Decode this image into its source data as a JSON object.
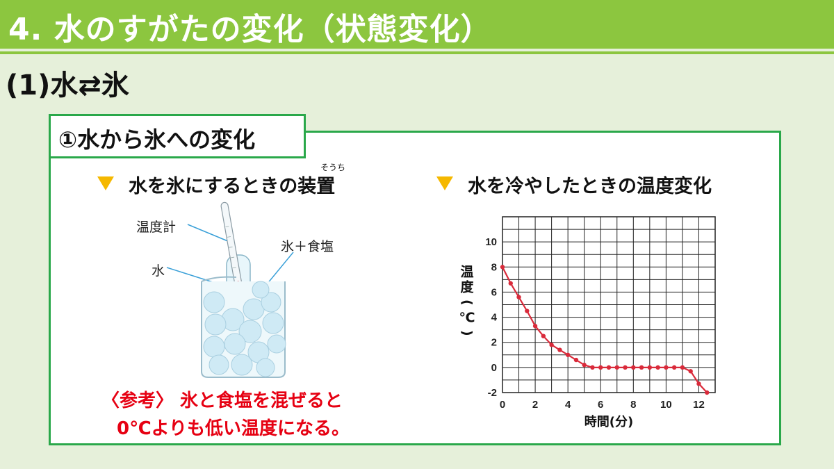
{
  "header": {
    "title": "4. 水のすがたの変化（状態変化）",
    "subtitle": "(1)水⇄氷"
  },
  "panel": {
    "tab_label": "①水から氷への変化",
    "left": {
      "heading": "水を氷にするときの装置",
      "ruby": "そうち",
      "labels": {
        "thermometer": "温度計",
        "water": "水",
        "ice_salt": "氷＋食塩"
      },
      "note_line1": "〈参考〉 氷と食塩を混ぜると",
      "note_line2": "0℃よりも低い温度になる。"
    },
    "right": {
      "heading": "水を冷やしたときの温度変化"
    }
  },
  "colors": {
    "title_bar": "#8cc63f",
    "panel_border": "#2aa84a",
    "marker": "#f5b800",
    "note": "#e60012",
    "series": "#d92a3a"
  },
  "chart_data": {
    "type": "line",
    "xlabel": "時間(分)",
    "ylabel": "温度(℃)",
    "xlim": [
      0,
      13
    ],
    "ylim": [
      -2,
      12
    ],
    "xticks": [
      "0",
      "2",
      "4",
      "6",
      "8",
      "10",
      "12"
    ],
    "yticks": [
      "-2",
      "0",
      "2",
      "4",
      "6",
      "8",
      "10"
    ],
    "grid": true,
    "series": [
      {
        "x": [
          0,
          0.5,
          1,
          1.5,
          2,
          2.5,
          3,
          3.5,
          4,
          4.5,
          5,
          5.5,
          6,
          6.5,
          7,
          7.5,
          8,
          8.5,
          9,
          9.5,
          10,
          10.5,
          11,
          11.5,
          12,
          12.5
        ],
        "y": [
          8,
          6.7,
          5.6,
          4.5,
          3.3,
          2.5,
          1.8,
          1.4,
          1.0,
          0.6,
          0.2,
          0,
          0,
          0,
          0,
          0,
          0,
          0,
          0,
          0,
          0,
          0,
          0,
          -0.3,
          -1.3,
          -2
        ]
      }
    ]
  }
}
